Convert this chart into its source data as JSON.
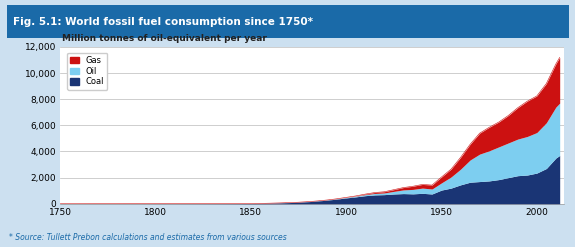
{
  "title": "Fig. 5.1: World fossil fuel consumption since 1750*",
  "subtitle": "Million tonnes of oil-equivalent per year",
  "footnote": "* Source: Tullett Prebon calculations and estimates from various sources",
  "title_bg_color": "#1a6aa8",
  "title_text_color": "#ffffff",
  "outer_bg_color": "#cce0f0",
  "chart_bg_color": "#ffffff",
  "border_color": "#6aaad4",
  "ylim": [
    0,
    12000
  ],
  "yticks": [
    0,
    2000,
    4000,
    6000,
    8000,
    10000,
    12000
  ],
  "xticks": [
    1750,
    1800,
    1850,
    1900,
    1950,
    2000
  ],
  "colors": {
    "Gas": "#cc1111",
    "Oil": "#7dcef0",
    "Coal": "#1a3575"
  },
  "years": [
    1750,
    1760,
    1770,
    1780,
    1790,
    1800,
    1810,
    1820,
    1830,
    1840,
    1850,
    1855,
    1860,
    1865,
    1870,
    1875,
    1880,
    1885,
    1890,
    1895,
    1900,
    1905,
    1910,
    1915,
    1920,
    1925,
    1930,
    1935,
    1940,
    1945,
    1950,
    1955,
    1960,
    1965,
    1970,
    1975,
    1980,
    1985,
    1990,
    1995,
    2000,
    2005,
    2010,
    2012
  ],
  "coal": [
    2,
    2,
    3,
    3,
    4,
    5,
    7,
    9,
    12,
    16,
    22,
    30,
    45,
    65,
    90,
    120,
    160,
    215,
    280,
    360,
    450,
    530,
    620,
    680,
    700,
    750,
    780,
    760,
    800,
    750,
    1050,
    1200,
    1450,
    1650,
    1700,
    1750,
    1850,
    2000,
    2150,
    2200,
    2350,
    2700,
    3500,
    3700
  ],
  "oil": [
    0,
    0,
    0,
    0,
    0,
    0,
    0,
    0,
    0,
    0,
    0,
    0,
    0,
    0,
    0,
    0,
    2,
    4,
    8,
    15,
    30,
    50,
    80,
    110,
    130,
    200,
    280,
    340,
    400,
    380,
    550,
    850,
    1200,
    1700,
    2100,
    2300,
    2500,
    2650,
    2800,
    2950,
    3100,
    3500,
    3900,
    4000
  ],
  "gas": [
    0,
    0,
    0,
    0,
    0,
    0,
    0,
    0,
    0,
    0,
    0,
    0,
    0,
    0,
    0,
    0,
    0,
    0,
    2,
    5,
    10,
    20,
    40,
    70,
    90,
    130,
    180,
    240,
    280,
    300,
    450,
    600,
    900,
    1200,
    1600,
    1800,
    1900,
    2100,
    2400,
    2700,
    2800,
    3000,
    3300,
    3500
  ]
}
